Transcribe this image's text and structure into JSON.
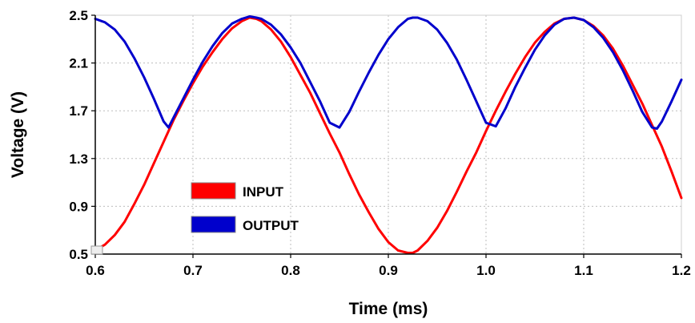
{
  "chart_data": {
    "type": "line",
    "xlabel": "Time (ms)",
    "ylabel": "Voltage (V)",
    "xlim": [
      0.6,
      1.2
    ],
    "ylim": [
      0.5,
      2.5
    ],
    "x_ticks": [
      {
        "value": 0.6,
        "label": "0.6"
      },
      {
        "value": 0.7,
        "label": "0.7"
      },
      {
        "value": 0.8,
        "label": "0.8"
      },
      {
        "value": 0.9,
        "label": "0.9"
      },
      {
        "value": 1.0,
        "label": "1.0"
      },
      {
        "value": 1.1,
        "label": "1.1"
      },
      {
        "value": 1.2,
        "label": "1.2"
      }
    ],
    "y_ticks": [
      {
        "value": 0.5,
        "label": "0.5"
      },
      {
        "value": 0.9,
        "label": "0.9"
      },
      {
        "value": 1.3,
        "label": "1.3"
      },
      {
        "value": 1.7,
        "label": "1.7"
      },
      {
        "value": 2.1,
        "label": "2.1"
      },
      {
        "value": 2.5,
        "label": "2.5"
      }
    ],
    "grid": true,
    "grid_style": "dotted",
    "legend_position": "center-left",
    "series": [
      {
        "name": "INPUT",
        "color": "#ff0000",
        "x": [
          0.6,
          0.61,
          0.62,
          0.63,
          0.64,
          0.65,
          0.66,
          0.67,
          0.675,
          0.68,
          0.69,
          0.7,
          0.71,
          0.72,
          0.73,
          0.74,
          0.75,
          0.758,
          0.765,
          0.77,
          0.78,
          0.79,
          0.8,
          0.81,
          0.82,
          0.83,
          0.84,
          0.85,
          0.86,
          0.87,
          0.88,
          0.89,
          0.9,
          0.91,
          0.92,
          0.925,
          0.93,
          0.94,
          0.95,
          0.96,
          0.97,
          0.98,
          0.99,
          1.0,
          1.01,
          1.02,
          1.03,
          1.04,
          1.05,
          1.06,
          1.07,
          1.08,
          1.09,
          1.1,
          1.11,
          1.12,
          1.13,
          1.14,
          1.15,
          1.16,
          1.17,
          1.18,
          1.19,
          1.2
        ],
        "y": [
          0.53,
          0.58,
          0.66,
          0.77,
          0.92,
          1.08,
          1.26,
          1.44,
          1.53,
          1.62,
          1.78,
          1.93,
          2.07,
          2.19,
          2.3,
          2.39,
          2.45,
          2.48,
          2.47,
          2.45,
          2.38,
          2.28,
          2.15,
          2.0,
          1.85,
          1.68,
          1.51,
          1.35,
          1.17,
          1.0,
          0.85,
          0.71,
          0.6,
          0.53,
          0.51,
          0.51,
          0.53,
          0.61,
          0.72,
          0.86,
          1.02,
          1.19,
          1.35,
          1.53,
          1.7,
          1.86,
          2.01,
          2.15,
          2.27,
          2.36,
          2.43,
          2.47,
          2.48,
          2.46,
          2.41,
          2.33,
          2.22,
          2.08,
          1.92,
          1.76,
          1.58,
          1.4,
          1.19,
          0.97
        ]
      },
      {
        "name": "OUTPUT",
        "color": "#0000cc",
        "x": [
          0.6,
          0.61,
          0.62,
          0.63,
          0.64,
          0.65,
          0.66,
          0.67,
          0.675,
          0.68,
          0.69,
          0.7,
          0.71,
          0.72,
          0.73,
          0.74,
          0.75,
          0.758,
          0.765,
          0.77,
          0.78,
          0.79,
          0.8,
          0.81,
          0.82,
          0.83,
          0.84,
          0.85,
          0.86,
          0.87,
          0.88,
          0.89,
          0.9,
          0.91,
          0.92,
          0.925,
          0.93,
          0.94,
          0.95,
          0.96,
          0.97,
          0.98,
          0.99,
          1.0,
          1.01,
          1.02,
          1.03,
          1.04,
          1.05,
          1.06,
          1.07,
          1.08,
          1.09,
          1.1,
          1.11,
          1.12,
          1.13,
          1.14,
          1.15,
          1.16,
          1.17,
          1.175,
          1.18,
          1.19,
          1.2
        ],
        "y": [
          2.47,
          2.44,
          2.38,
          2.28,
          2.14,
          1.98,
          1.8,
          1.61,
          1.56,
          1.64,
          1.8,
          1.96,
          2.11,
          2.24,
          2.35,
          2.43,
          2.47,
          2.49,
          2.48,
          2.47,
          2.42,
          2.34,
          2.23,
          2.1,
          1.94,
          1.78,
          1.6,
          1.56,
          1.69,
          1.86,
          2.02,
          2.17,
          2.3,
          2.4,
          2.47,
          2.48,
          2.48,
          2.45,
          2.38,
          2.27,
          2.13,
          1.96,
          1.78,
          1.6,
          1.57,
          1.72,
          1.9,
          2.06,
          2.21,
          2.33,
          2.42,
          2.47,
          2.48,
          2.46,
          2.4,
          2.31,
          2.19,
          2.04,
          1.87,
          1.69,
          1.56,
          1.55,
          1.61,
          1.78,
          1.96
        ]
      }
    ]
  }
}
